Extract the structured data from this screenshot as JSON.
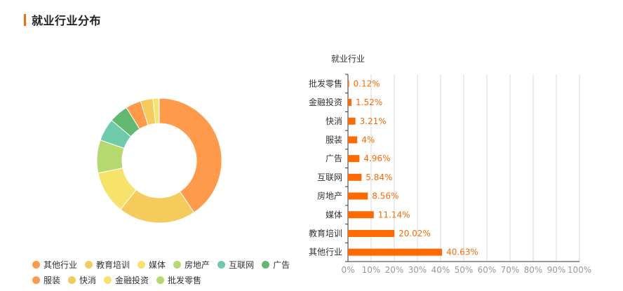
{
  "section": {
    "title": "就业行业分布"
  },
  "chart_data": [
    {
      "type": "pie",
      "style": "donut",
      "categories": [
        "其他行业",
        "教育培训",
        "媒体",
        "房地产",
        "互联网",
        "广告",
        "服装",
        "快消",
        "金融投资",
        "批发零售"
      ],
      "values": [
        40.63,
        20.02,
        11.14,
        8.56,
        5.84,
        4.96,
        4.0,
        3.21,
        1.52,
        0.12
      ],
      "colors": [
        "#ff9a4a",
        "#f5cb5c",
        "#f7e36a",
        "#b5d96e",
        "#6dcbaa",
        "#63b870",
        "#ff9a4a",
        "#f5cb5c",
        "#f7e36a",
        "#b5d96e"
      ],
      "legend": {
        "placement": "bottom-left",
        "rows": [
          [
            0,
            1,
            2,
            3,
            4,
            5
          ],
          [
            6,
            7,
            8,
            9
          ]
        ]
      }
    },
    {
      "type": "bar",
      "orientation": "horizontal",
      "title": "就业行业",
      "categories": [
        "批发零售",
        "金融投资",
        "快消",
        "服装",
        "广告",
        "互联网",
        "房地产",
        "媒体",
        "教育培训",
        "其他行业"
      ],
      "values": [
        0.12,
        1.52,
        3.21,
        4,
        4.96,
        5.84,
        8.56,
        11.14,
        20.02,
        40.63
      ],
      "value_labels": [
        "0.12%",
        "1.52%",
        "3.21%",
        "4%",
        "4.96%",
        "5.84%",
        "8.56%",
        "11.14%",
        "20.02%",
        "40.63%"
      ],
      "xlim": [
        0,
        100
      ],
      "x_ticks": [
        "0%",
        "10%",
        "20%",
        "30%",
        "40%",
        "50%",
        "60%",
        "70%",
        "80%",
        "90%",
        "100%"
      ],
      "grid": true,
      "bar_color": "#ff6a00",
      "label_color": "#ff6a00"
    }
  ]
}
